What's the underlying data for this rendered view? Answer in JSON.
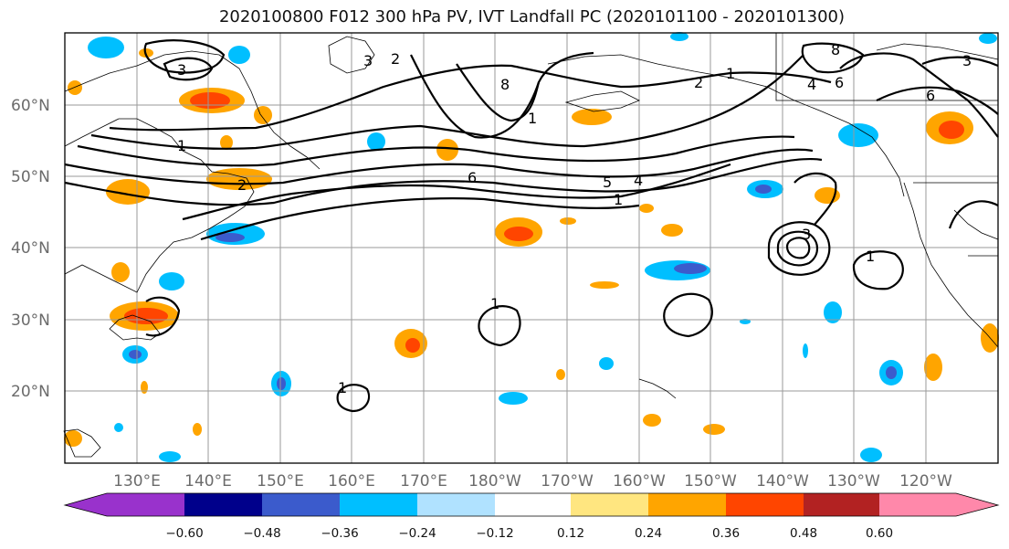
{
  "title": "2020100800 F012 300 hPa PV, IVT Landfall PC (2020101100 - 2020101300)",
  "latitude_labels": [
    "20°N",
    "30°N",
    "40°N",
    "50°N",
    "60°N"
  ],
  "longitude_labels": [
    "130°E",
    "140°E",
    "150°E",
    "160°E",
    "170°E",
    "180°W",
    "170°W",
    "160°W",
    "150°W",
    "140°W",
    "130°W",
    "120°W"
  ],
  "contour_labels": [
    "1",
    "2",
    "3",
    "4",
    "5",
    "6",
    "8"
  ],
  "colorbar": {
    "tick_labels": [
      "−0.60",
      "−0.48",
      "−0.36",
      "−0.24",
      "−0.12",
      "0.12",
      "0.24",
      "0.36",
      "0.48",
      "0.60"
    ],
    "colors": [
      "#9932cc",
      "#00008b",
      "#3b5bcc",
      "#00bfff",
      "#b0e2ff",
      "#ffffff",
      "#ffe680",
      "#ffa500",
      "#ff4500",
      "#b22222",
      "#ff88aa"
    ]
  }
}
